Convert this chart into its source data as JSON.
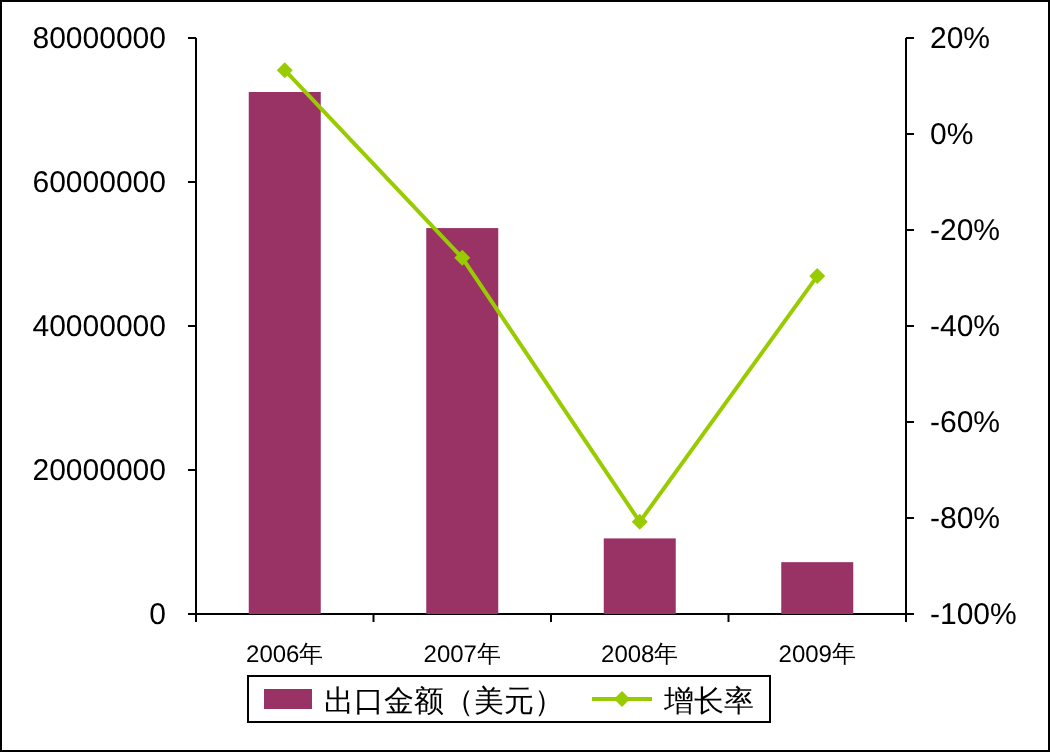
{
  "chart_data": {
    "type": "bar",
    "categories": [
      "2006年",
      "2007年",
      "2008年",
      "2009年"
    ],
    "series": [
      {
        "name": "出口金额（美元）",
        "color": "#993366",
        "values": [
          72500000,
          53600000,
          10500000,
          7200000
        ]
      },
      {
        "name": "增长率",
        "type": "line",
        "axis": "y2",
        "color": "#99cc00",
        "marker": "diamond",
        "values": [
          13.3,
          -25.8,
          -80.8,
          -29.6
        ]
      }
    ],
    "ylim": [
      0,
      80000000
    ],
    "yticks": [
      0,
      20000000,
      40000000,
      60000000,
      80000000
    ],
    "y2lim": [
      -100,
      20
    ],
    "y2ticks": [
      {
        "value": -100,
        "label": "-100%"
      },
      {
        "value": -80,
        "label": "-80%"
      },
      {
        "value": -60,
        "label": "-60%"
      },
      {
        "value": -40,
        "label": "-40%"
      },
      {
        "value": -20,
        "label": "-20%"
      },
      {
        "value": 0,
        "label": "0%"
      },
      {
        "value": 20,
        "label": "20%"
      }
    ],
    "legend": "bottom"
  }
}
